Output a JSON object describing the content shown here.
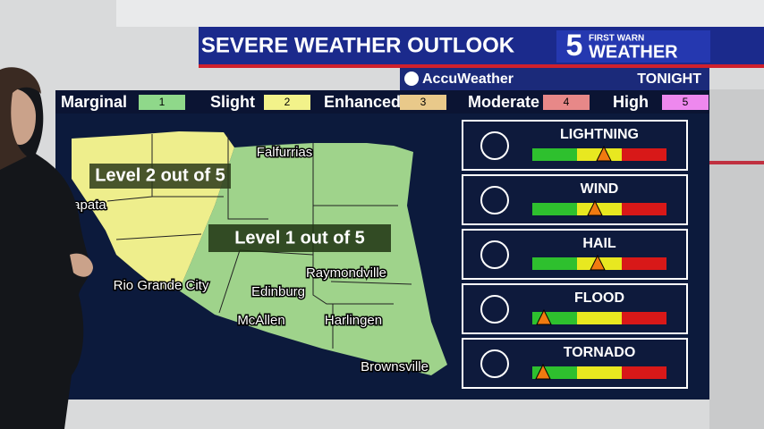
{
  "header": {
    "title": "SEVERE WEATHER OUTLOOK",
    "logo_number": "5",
    "logo_top": "FIRST WARN",
    "logo_bottom": "WEATHER"
  },
  "subheader": {
    "brand": "AccuWeather",
    "period": "TONIGHT"
  },
  "legend": [
    {
      "label": "Marginal",
      "level": "1"
    },
    {
      "label": "Slight",
      "level": "2"
    },
    {
      "label": "Enhanced",
      "level": "3"
    },
    {
      "label": "Moderate",
      "level": "4"
    },
    {
      "label": "High",
      "level": "5"
    }
  ],
  "map": {
    "labels": [
      "Level 2 out of 5",
      "Level 1 out of 5"
    ],
    "cities": [
      "Falfurrias",
      "Zapata",
      "Rio Grande City",
      "Edinburg",
      "Raymondville",
      "McAllen",
      "Harlingen",
      "Brownsville"
    ]
  },
  "threats": [
    "LIGHTNING",
    "WIND",
    "HAIL",
    "FLOOD",
    "TORNADO"
  ]
}
